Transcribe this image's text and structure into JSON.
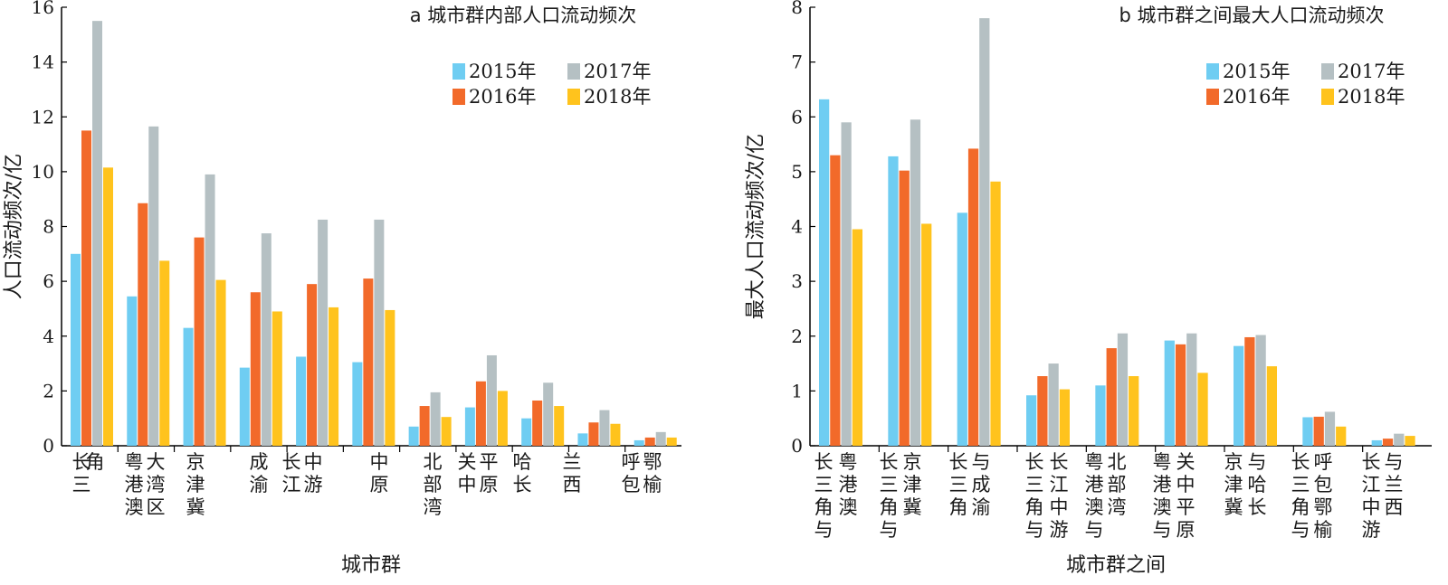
{
  "chart_data": [
    {
      "type": "bar",
      "title": "a 城市群内部人口流动频次",
      "xlabel": "城市群",
      "ylabel": "人口流动频次/亿",
      "ylim": [
        0,
        16
      ],
      "yticks": [
        "0",
        "2",
        "4",
        "6",
        "8",
        "10",
        "12",
        "14",
        "16"
      ],
      "grid": false,
      "legend_position": "top-right",
      "categories": [
        [
          "长",
          "三",
          "角"
        ],
        [
          "粤",
          "港",
          "澳",
          "大",
          "湾",
          "区"
        ],
        [
          "京",
          "津",
          "冀"
        ],
        [
          "成",
          "渝"
        ],
        [
          "长",
          "江",
          "中",
          "游"
        ],
        [
          "中",
          "原"
        ],
        [
          "北",
          "部",
          "湾"
        ],
        [
          "关",
          "中",
          "平",
          "原"
        ],
        [
          "哈",
          "长"
        ],
        [
          "兰",
          "西"
        ],
        [
          "呼",
          "包",
          "鄂",
          "榆"
        ]
      ],
      "series": [
        {
          "name": "2015年",
          "color": "#6fcdf2",
          "values": [
            7.0,
            5.45,
            4.3,
            2.85,
            3.25,
            3.05,
            0.7,
            1.4,
            1.0,
            0.45,
            0.2
          ]
        },
        {
          "name": "2016年",
          "color": "#f26a2a",
          "values": [
            11.5,
            8.85,
            7.6,
            5.6,
            5.9,
            6.1,
            1.45,
            2.35,
            1.65,
            0.85,
            0.3
          ]
        },
        {
          "name": "2017年",
          "color": "#b5c0c3",
          "values": [
            15.5,
            11.65,
            9.9,
            7.75,
            8.25,
            8.25,
            1.95,
            3.3,
            2.3,
            1.3,
            0.5
          ]
        },
        {
          "name": "2018年",
          "color": "#ffc31d",
          "values": [
            10.15,
            6.75,
            6.05,
            4.9,
            5.05,
            4.95,
            1.05,
            2.0,
            1.45,
            0.8,
            0.3
          ]
        }
      ]
    },
    {
      "type": "bar",
      "title": "b 城市群之间最大人口流动频次",
      "xlabel": "城市群之间",
      "ylabel": "最大人口流动频次/亿",
      "ylim": [
        0,
        8
      ],
      "yticks": [
        "0",
        "1",
        "2",
        "3",
        "4",
        "5",
        "6",
        "7",
        "8"
      ],
      "grid": false,
      "legend_position": "top-right",
      "categories": [
        [
          "长",
          "三",
          "角",
          "与",
          "粤",
          "港",
          "澳"
        ],
        [
          "长",
          "三",
          "角",
          "与",
          "京",
          "津",
          "冀"
        ],
        [
          "长",
          "三",
          "角",
          "与",
          "成",
          "渝"
        ],
        [
          "长",
          "三",
          "角",
          "与",
          "长",
          "江",
          "中",
          "游"
        ],
        [
          "粤",
          "港",
          "澳",
          "与",
          "北",
          "部",
          "湾"
        ],
        [
          "粤",
          "港",
          "澳",
          "与",
          "关",
          "中",
          "平",
          "原"
        ],
        [
          "京",
          "津",
          "冀",
          "与",
          "哈",
          "长"
        ],
        [
          "长",
          "三",
          "角",
          "与",
          "呼",
          "包",
          "鄂",
          "榆"
        ],
        [
          "长",
          "江",
          "中",
          "游",
          "与",
          "兰",
          "西"
        ]
      ],
      "series": [
        {
          "name": "2015年",
          "color": "#6fcdf2",
          "values": [
            6.32,
            5.28,
            4.25,
            0.92,
            1.1,
            1.92,
            1.82,
            0.52,
            0.1
          ]
        },
        {
          "name": "2016年",
          "color": "#f26a2a",
          "values": [
            5.3,
            5.02,
            5.42,
            1.27,
            1.78,
            1.85,
            1.98,
            0.53,
            0.13
          ]
        },
        {
          "name": "2017年",
          "color": "#b5c0c3",
          "values": [
            5.9,
            5.95,
            7.8,
            1.5,
            2.05,
            2.05,
            2.02,
            0.62,
            0.22
          ]
        },
        {
          "name": "2018年",
          "color": "#ffc31d",
          "values": [
            3.95,
            4.05,
            4.82,
            1.03,
            1.27,
            1.33,
            1.45,
            0.35,
            0.18
          ]
        }
      ]
    }
  ]
}
